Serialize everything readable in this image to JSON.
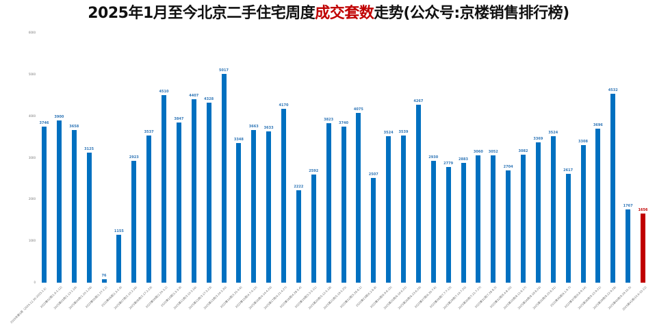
{
  "title": {
    "part1": "2025年1月至今北京二手住宅周度",
    "highlight": "成交套数",
    "part2": "走势(公众号:京楼销售排行榜)"
  },
  "colors": {
    "bar": "#0070c0",
    "bar_last": "#c00000",
    "label": "#2e75b6",
    "label_last": "#c00000"
  },
  "chart_data": {
    "type": "bar",
    "title": "2025年1月至今北京二手住宅周度成交套数走势(公众号:京楼销售排行榜)",
    "xlabel": "",
    "ylabel": "",
    "ylim": [
      0,
      6000
    ],
    "yticks": [
      0,
      1000,
      2000,
      3000,
      4000,
      5000,
      6000
    ],
    "grid": false,
    "legend": null,
    "categories": [
      "2025年第1周（2024.12.30-2025.1.5）",
      "2025第02周(1.6-1.12)",
      "2025第03周(1.13-1.19)",
      "2025第04周(1.20-1.26)",
      "2025第05周(1.27-2.2)",
      "2025第06周(2.3-2.9)",
      "2025第07周(2.10-2.16)",
      "2025第08周(2.17-2.23)",
      "2025第09周(2.24-3.2)",
      "2025第10周(3.3-3.9)",
      "2025第11周(3.10-3.16)",
      "2025第12周(3.17-3.23)",
      "2025第13周(3.24-3.30)",
      "2025第14周(3.31-4.6)",
      "2025第15周(4.7-4.13)",
      "2025第16周(4.14-4.20)",
      "2025第17周(4.21-4.27)",
      "2025第18周(4.28-5.4)",
      "2025第19周(5.5-5.11)",
      "2025第20周(5.12-5.18)",
      "2025第21周(5.19-5.25)",
      "2025第22周(5.26-6.1)",
      "2025第23周(6.2-6.8)",
      "2025第24周(6.9-6.15)",
      "2025第25周(6.16-6.22)",
      "2025第26周(6.23-6.29)",
      "2025第27周(6.30-7.6)",
      "2025第28周(7.7-7.13)",
      "2025第29周(7.14-7.20)",
      "2025第30周(7.21-7.27)",
      "2025第31周(7.28-8.3)",
      "2025第32周(8.4-8.10)",
      "2025第33周(8.11-8.17)",
      "2025第34周(8.18-8.24)",
      "2025第35周(8.25-8.31)",
      "2025第36周(9.1-9.7)",
      "2025第37周(9.8-9.14)",
      "2025第38周(9.15-9.21)",
      "2025第39周(9.22-9.28)",
      "2025第40周(9.29-10.5)",
      "2025第41周(10.6-10.12)"
    ],
    "series": [
      {
        "name": "周度成交套数",
        "values": [
          3746,
          3900,
          3658,
          3125,
          76,
          1155,
          2923,
          3537,
          4510,
          3847,
          4407,
          4328,
          5017,
          3348,
          3663,
          3633,
          4170,
          2222,
          2592,
          3823,
          3740,
          4075,
          2507,
          3524,
          3539,
          4267,
          2930,
          2779,
          2883,
          3060,
          3052,
          2704,
          3082,
          3369,
          3524,
          2617,
          3308,
          3696,
          4532,
          1767,
          1656
        ]
      }
    ],
    "highlight_last_bar": true
  }
}
